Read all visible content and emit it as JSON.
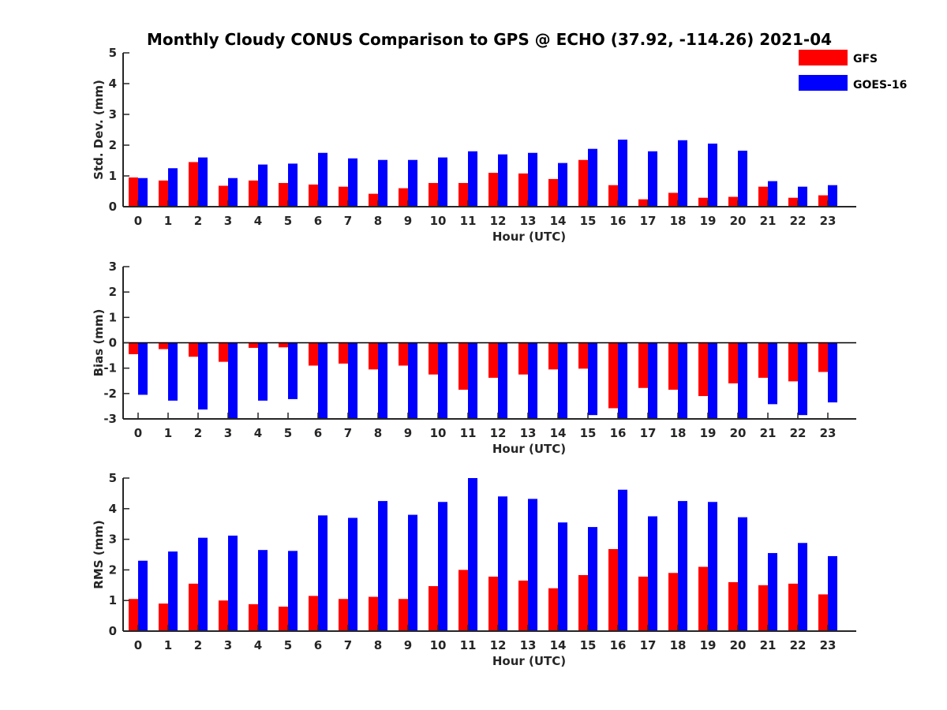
{
  "title": "Monthly Cloudy CONUS Comparison to GPS @ ECHO (37.92, -114.26) 2021-04",
  "legend": {
    "placement": "top-right",
    "items": [
      {
        "label": "GFS",
        "color": "#ff0000"
      },
      {
        "label": "GOES-16",
        "color": "#0000ff"
      }
    ]
  },
  "chart_data": [
    {
      "type": "bar",
      "xlabel": "Hour (UTC)",
      "ylabel": "Std. Dev. (mm)",
      "ylim": [
        0,
        5
      ],
      "yticks": [
        "0",
        "1",
        "2",
        "3",
        "4",
        "5"
      ],
      "categories": [
        "0",
        "1",
        "2",
        "3",
        "4",
        "5",
        "6",
        "7",
        "8",
        "9",
        "10",
        "11",
        "12",
        "13",
        "14",
        "15",
        "16",
        "17",
        "18",
        "19",
        "20",
        "21",
        "22",
        "23"
      ],
      "series": [
        {
          "name": "GFS",
          "color": "#ff0000",
          "values": [
            0.95,
            0.85,
            1.45,
            0.68,
            0.85,
            0.77,
            0.72,
            0.65,
            0.42,
            0.6,
            0.77,
            0.77,
            1.1,
            1.08,
            0.9,
            1.52,
            0.7,
            0.24,
            0.45,
            0.29,
            0.32,
            0.65,
            0.29,
            0.37
          ]
        },
        {
          "name": "GOES-16",
          "color": "#0000ff",
          "values": [
            0.93,
            1.25,
            1.6,
            0.93,
            1.37,
            1.4,
            1.75,
            1.57,
            1.52,
            1.52,
            1.6,
            1.8,
            1.7,
            1.75,
            1.42,
            1.88,
            2.18,
            1.8,
            2.16,
            2.05,
            1.82,
            0.83,
            0.65,
            0.7
          ]
        }
      ]
    },
    {
      "type": "bar",
      "xlabel": "Hour (UTC)",
      "ylabel": "Bias (mm)",
      "ylim": [
        -3,
        3
      ],
      "yticks": [
        "-3",
        "-2",
        "-1",
        "0",
        "1",
        "2",
        "3"
      ],
      "categories": [
        "0",
        "1",
        "2",
        "3",
        "4",
        "5",
        "6",
        "7",
        "8",
        "9",
        "10",
        "11",
        "12",
        "13",
        "14",
        "15",
        "16",
        "17",
        "18",
        "19",
        "20",
        "21",
        "22",
        "23"
      ],
      "series": [
        {
          "name": "GFS",
          "color": "#ff0000",
          "values": [
            -0.45,
            -0.25,
            -0.55,
            -0.75,
            -0.2,
            -0.18,
            -0.9,
            -0.82,
            -1.05,
            -0.9,
            -1.25,
            -1.85,
            -1.38,
            -1.25,
            -1.05,
            -1.02,
            -2.58,
            -1.78,
            -1.85,
            -2.1,
            -1.6,
            -1.38,
            -1.52,
            -1.15
          ]
        },
        {
          "name": "GOES-16",
          "color": "#0000ff",
          "values": [
            -2.05,
            -2.28,
            -2.63,
            -3.0,
            -2.28,
            -2.22,
            -3.0,
            -3.0,
            -3.0,
            -3.0,
            -3.0,
            -3.0,
            -3.0,
            -3.0,
            -3.0,
            -2.85,
            -3.0,
            -3.0,
            -3.0,
            -3.0,
            -3.0,
            -2.42,
            -2.85,
            -2.35
          ]
        }
      ]
    },
    {
      "type": "bar",
      "xlabel": "Hour (UTC)",
      "ylabel": "RMS (mm)",
      "ylim": [
        0,
        5
      ],
      "yticks": [
        "0",
        "1",
        "2",
        "3",
        "4",
        "5"
      ],
      "categories": [
        "0",
        "1",
        "2",
        "3",
        "4",
        "5",
        "6",
        "7",
        "8",
        "9",
        "10",
        "11",
        "12",
        "13",
        "14",
        "15",
        "16",
        "17",
        "18",
        "19",
        "20",
        "21",
        "22",
        "23"
      ],
      "series": [
        {
          "name": "GFS",
          "color": "#ff0000",
          "values": [
            1.05,
            0.9,
            1.55,
            1.0,
            0.88,
            0.8,
            1.15,
            1.05,
            1.12,
            1.05,
            1.47,
            2.0,
            1.78,
            1.65,
            1.4,
            1.83,
            2.68,
            1.78,
            1.9,
            2.1,
            1.6,
            1.5,
            1.55,
            1.2
          ]
        },
        {
          "name": "GOES-16",
          "color": "#0000ff",
          "values": [
            2.3,
            2.6,
            3.05,
            3.12,
            2.65,
            2.62,
            3.78,
            3.7,
            4.25,
            3.8,
            4.22,
            5.0,
            4.4,
            4.32,
            3.55,
            3.4,
            4.62,
            3.75,
            4.25,
            4.22,
            3.72,
            2.55,
            2.88,
            2.45
          ]
        }
      ]
    }
  ]
}
